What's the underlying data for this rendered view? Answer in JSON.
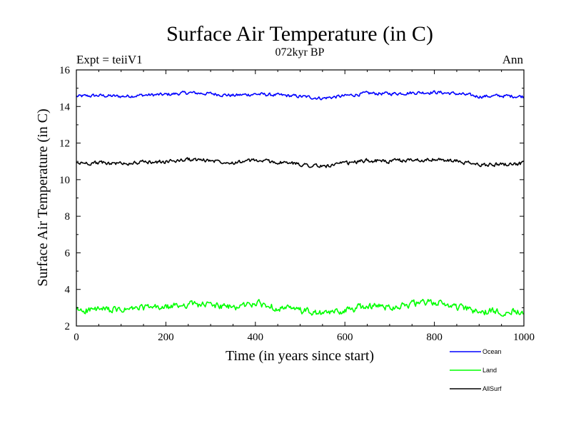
{
  "chart_data": {
    "type": "line",
    "title": "Surface Air Temperature (in C)",
    "subtitle": "072kyr BP",
    "left_label": "Expt = teiiV1",
    "right_label": "Ann",
    "xlabel": "Time (in years since start)",
    "ylabel": "Surface Air Temperature (in C)",
    "xlim": [
      0,
      1000
    ],
    "ylim": [
      2,
      16
    ],
    "x_ticks": [
      0,
      200,
      400,
      600,
      800,
      1000
    ],
    "y_ticks": [
      2,
      4,
      6,
      8,
      10,
      12,
      14,
      16
    ],
    "grid": false,
    "legend_position": "bottom-right",
    "series": [
      {
        "name": "Ocean",
        "color": "#0000ff",
        "x": [
          0,
          50,
          100,
          150,
          200,
          250,
          300,
          350,
          400,
          450,
          500,
          550,
          600,
          650,
          700,
          750,
          800,
          850,
          900,
          950,
          1000
        ],
        "values": [
          14.55,
          14.6,
          14.55,
          14.62,
          14.65,
          14.75,
          14.7,
          14.6,
          14.68,
          14.62,
          14.55,
          14.45,
          14.58,
          14.72,
          14.7,
          14.75,
          14.78,
          14.7,
          14.55,
          14.58,
          14.55
        ]
      },
      {
        "name": "Land",
        "color": "#00ff00",
        "x": [
          0,
          50,
          100,
          150,
          200,
          250,
          300,
          350,
          400,
          450,
          500,
          550,
          600,
          650,
          700,
          750,
          800,
          850,
          900,
          950,
          1000
        ],
        "values": [
          2.85,
          2.9,
          2.85,
          3.0,
          3.0,
          3.2,
          3.15,
          3.0,
          3.25,
          3.0,
          2.85,
          2.65,
          2.85,
          3.1,
          3.05,
          3.2,
          3.3,
          3.05,
          2.75,
          2.8,
          2.85
        ]
      },
      {
        "name": "AllSurf",
        "color": "#000000",
        "x": [
          0,
          50,
          100,
          150,
          200,
          250,
          300,
          350,
          400,
          450,
          500,
          550,
          600,
          650,
          700,
          750,
          800,
          850,
          900,
          950,
          1000
        ],
        "values": [
          10.9,
          10.92,
          10.88,
          10.95,
          10.98,
          11.1,
          11.05,
          10.95,
          11.05,
          10.95,
          10.85,
          10.72,
          10.88,
          11.05,
          11.0,
          11.08,
          11.1,
          11.0,
          10.8,
          10.85,
          10.88
        ]
      }
    ]
  }
}
